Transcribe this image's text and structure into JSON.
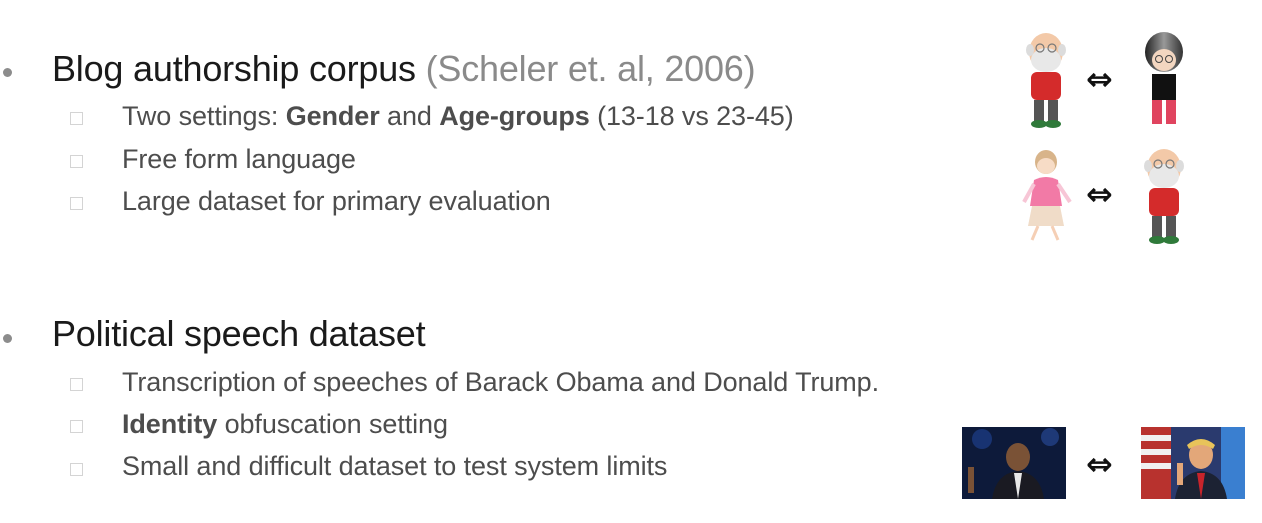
{
  "section1": {
    "title": "Blog authorship corpus",
    "citation": "(Scheler et. al, 2006)",
    "items": [
      {
        "pre": "Two settings:  ",
        "b1": "Gender",
        "mid": " and  ",
        "b2": "Age-groups",
        "post": " (13-18  vs 23-45)"
      },
      {
        "text": "Free form language"
      },
      {
        "text": "Large dataset for primary evaluation"
      }
    ]
  },
  "section2": {
    "title": "Political speech dataset",
    "items": [
      {
        "text": "Transcription of speeches of Barack Obama and Donald Trump."
      },
      {
        "bold": "Identity",
        "rest": " obfuscation setting"
      },
      {
        "text": "Small and difficult dataset to test system limits"
      }
    ]
  },
  "arrow_symbol": "⇔",
  "icons": {
    "gender_row": [
      "old-man-icon",
      "young-person-icon"
    ],
    "age_row": [
      "woman-icon",
      "old-man-icon"
    ],
    "speech_row": [
      "obama-photo",
      "trump-photo"
    ]
  },
  "colors": {
    "bullet": "#8c8c8c",
    "citation": "#8a8a8a",
    "subtext": "#4d4d4d"
  }
}
